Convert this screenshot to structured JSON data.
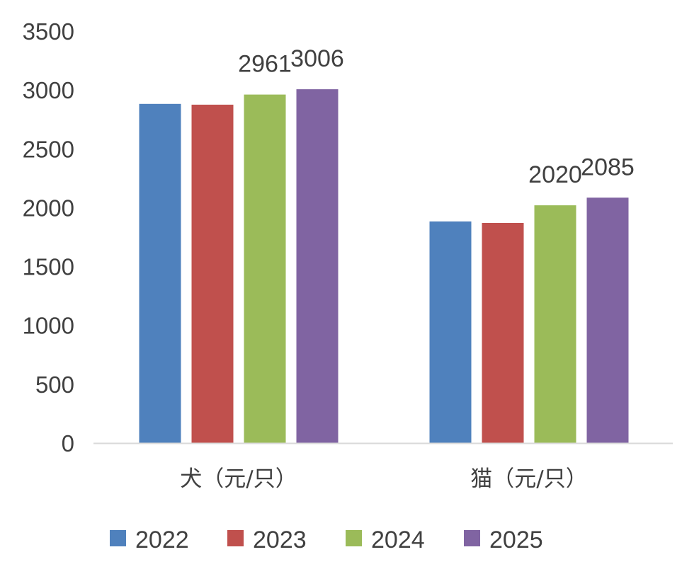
{
  "chart_data": {
    "type": "bar",
    "title": "",
    "xlabel": "",
    "ylabel": "",
    "ylim": [
      0,
      3500
    ],
    "yticks": [
      0,
      500,
      1000,
      1500,
      2000,
      2500,
      3000,
      3500
    ],
    "categories": [
      "犬（元/只）",
      "猫（元/只）"
    ],
    "series": [
      {
        "name": "2022",
        "color": "#4F81BD",
        "values": [
          2882,
          1883
        ],
        "labels": [
          "",
          ""
        ]
      },
      {
        "name": "2023",
        "color": "#C0504D",
        "values": [
          2875,
          1870
        ],
        "labels": [
          "",
          ""
        ]
      },
      {
        "name": "2024",
        "color": "#9BBB59",
        "values": [
          2961,
          2020
        ],
        "labels": [
          "2961",
          "2020"
        ]
      },
      {
        "name": "2025",
        "color": "#8064A2",
        "values": [
          3006,
          2085
        ],
        "labels": [
          "3006",
          "2085"
        ]
      }
    ],
    "grid": false,
    "legend_position": "bottom"
  }
}
